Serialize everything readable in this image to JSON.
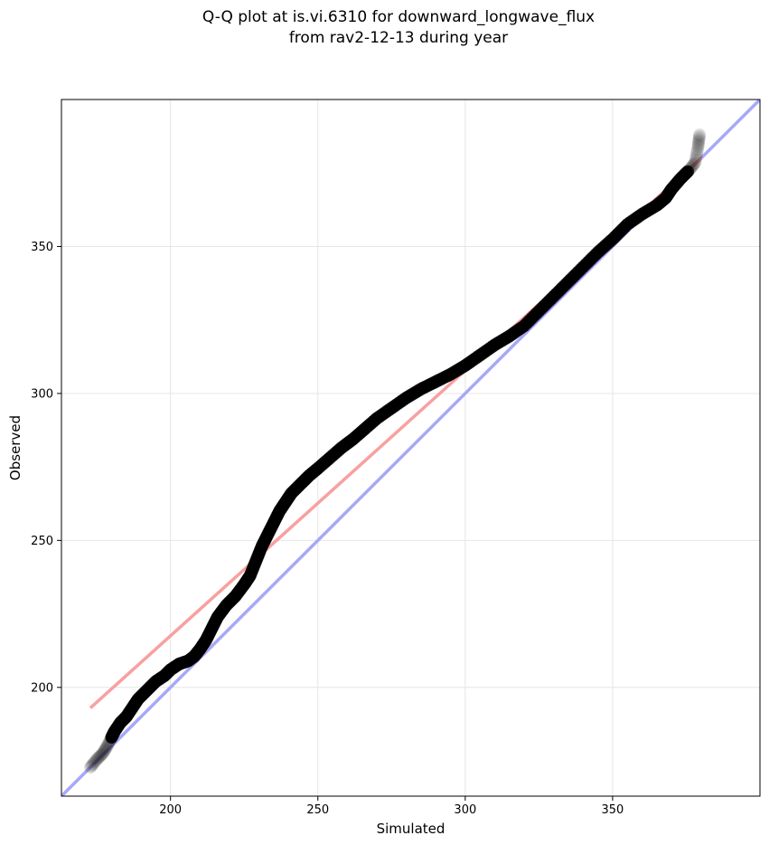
{
  "chart_data": {
    "type": "scatter",
    "title_line1": "Q-Q plot at is.vi.6310 for downward_longwave_flux",
    "title_line2": "from rav2-12-13 during year",
    "xlabel": "Simulated",
    "ylabel": "Observed",
    "xlim": [
      163,
      400
    ],
    "ylim": [
      163,
      400
    ],
    "xticks": [
      200,
      250,
      300,
      350
    ],
    "yticks": [
      200,
      250,
      300,
      350
    ],
    "grid": true,
    "series": [
      {
        "name": "quantiles",
        "color": "#000000",
        "points": [
          [
            172.8,
            172.8
          ],
          [
            175,
            175.5
          ],
          [
            177,
            177.5
          ],
          [
            178.5,
            180
          ],
          [
            180,
            183
          ],
          [
            181,
            185
          ],
          [
            183,
            188
          ],
          [
            185,
            190
          ],
          [
            187,
            193
          ],
          [
            189,
            196
          ],
          [
            192,
            199
          ],
          [
            195,
            202
          ],
          [
            198,
            204
          ],
          [
            200,
            206
          ],
          [
            203,
            208
          ],
          [
            206,
            209
          ],
          [
            208,
            210.5
          ],
          [
            210,
            213
          ],
          [
            212,
            216
          ],
          [
            214,
            220
          ],
          [
            216,
            224
          ],
          [
            219,
            228
          ],
          [
            222,
            231
          ],
          [
            225,
            235
          ],
          [
            227,
            238
          ],
          [
            229,
            243
          ],
          [
            231,
            248
          ],
          [
            233,
            252
          ],
          [
            235,
            256
          ],
          [
            237,
            260
          ],
          [
            239,
            263
          ],
          [
            241,
            266
          ],
          [
            244,
            269
          ],
          [
            247,
            272
          ],
          [
            250,
            274.5
          ],
          [
            254,
            278
          ],
          [
            258,
            281.5
          ],
          [
            262,
            284.5
          ],
          [
            266,
            288
          ],
          [
            270,
            291.5
          ],
          [
            275,
            295
          ],
          [
            280,
            298.5
          ],
          [
            285,
            301.5
          ],
          [
            290,
            304
          ],
          [
            295,
            306.5
          ],
          [
            300,
            309.5
          ],
          [
            305,
            313
          ],
          [
            310,
            316.5
          ],
          [
            315,
            319.5
          ],
          [
            320,
            323
          ],
          [
            325,
            328
          ],
          [
            330,
            333
          ],
          [
            335,
            338
          ],
          [
            340,
            343
          ],
          [
            345,
            348
          ],
          [
            350,
            352.5
          ],
          [
            355,
            357.5
          ],
          [
            360,
            361
          ],
          [
            365,
            364
          ],
          [
            368,
            366.5
          ],
          [
            370,
            369.5
          ],
          [
            373,
            373
          ],
          [
            376,
            376
          ],
          [
            378,
            378.5
          ],
          [
            379,
            384
          ],
          [
            379.5,
            388
          ]
        ]
      },
      {
        "name": "fit-line",
        "color": "#f8a0a0",
        "x": [
          172.8,
          380
        ],
        "y": [
          193,
          380
        ]
      },
      {
        "name": "one-to-one-line",
        "color": "#a8a8f8",
        "x": [
          163,
          400
        ],
        "y": [
          163,
          400
        ]
      }
    ]
  }
}
